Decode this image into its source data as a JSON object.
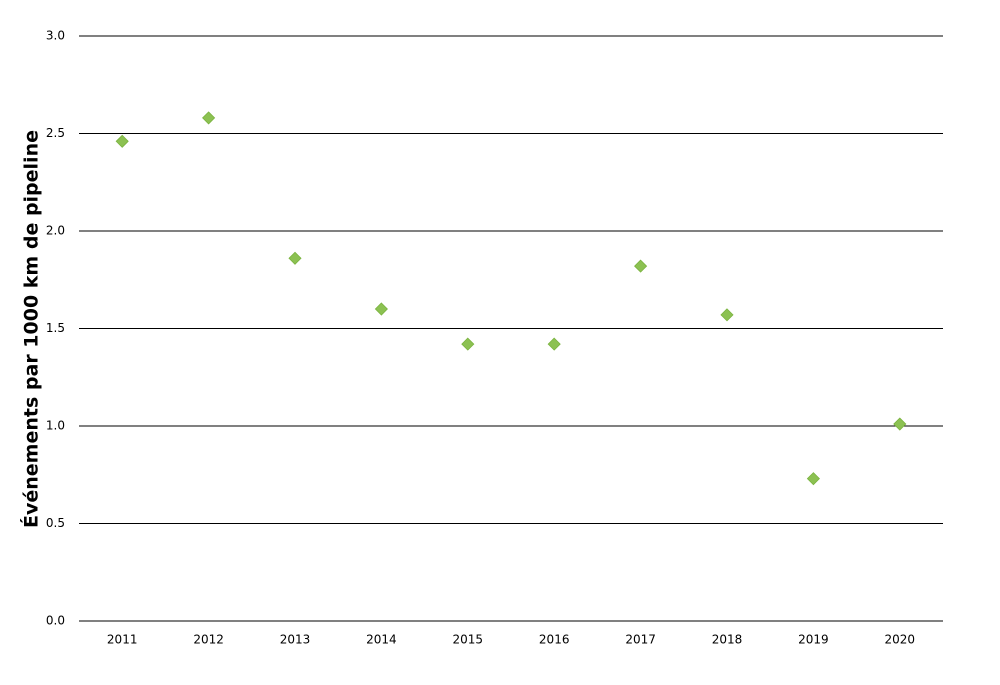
{
  "chart_data": {
    "type": "scatter",
    "y_label": "Événements par 1000 km de pipeline",
    "categories": [
      "2011",
      "2012",
      "2013",
      "2014",
      "2015",
      "2016",
      "2017",
      "2018",
      "2019",
      "2020"
    ],
    "values": [
      2.46,
      2.58,
      1.86,
      1.6,
      1.42,
      1.42,
      1.82,
      1.57,
      0.73,
      1.01
    ],
    "color": "#8cc152",
    "ylim": [
      0,
      3
    ],
    "yticks": [
      {
        "value": 0,
        "label": "0.0"
      },
      {
        "value": 0.5,
        "label": "0.5"
      },
      {
        "value": 1,
        "label": "1.0"
      },
      {
        "value": 1.5,
        "label": "1.5"
      },
      {
        "value": 2,
        "label": "2.0"
      },
      {
        "value": 2.5,
        "label": "2.5"
      },
      {
        "value": 3,
        "label": "3.0"
      }
    ],
    "grid": true
  }
}
